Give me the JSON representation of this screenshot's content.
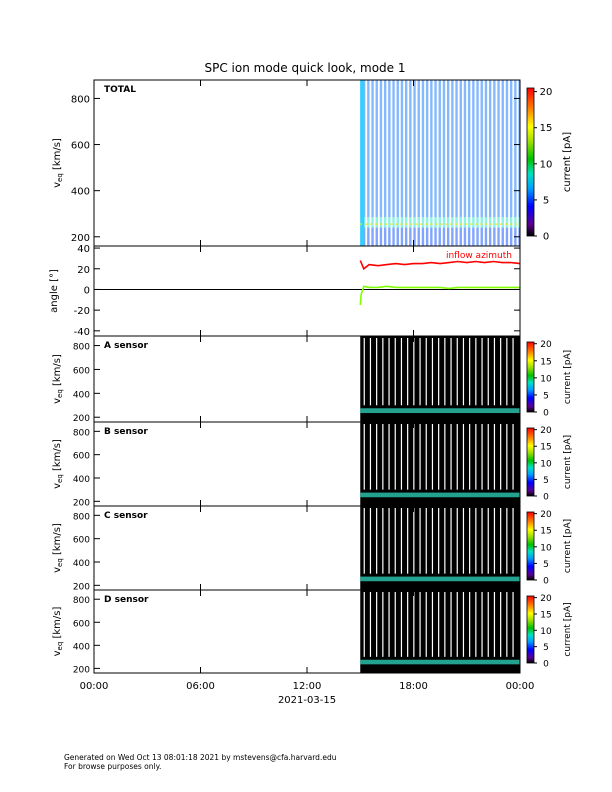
{
  "title": "SPC ion mode quick look, mode 1",
  "footer": {
    "line1": "Generated on Wed Oct 13 08:01:18 2021 by mstevens@cfa.harvard.edu",
    "line2": "For browse purposes only."
  },
  "chart_data": [
    {
      "type": "heatmap",
      "panel_label": "TOTAL",
      "ylabel": "v_eq [km/s]",
      "ylim": [
        160,
        880
      ],
      "yticks": [
        200,
        400,
        600,
        800
      ],
      "colorbar": {
        "label": "current [pA]",
        "range": [
          0,
          20.5
        ],
        "ticks": [
          0,
          5,
          10,
          15,
          20
        ],
        "colormap": "rainbow"
      },
      "data_start_hour": 15.0,
      "bands": [
        {
          "v_range": [
            160,
            240
          ],
          "color": "#1a5aff"
        },
        {
          "v_range": [
            240,
            285
          ],
          "color": "#30e8c8"
        },
        {
          "v_range": [
            285,
            880
          ],
          "color": "#2080ff"
        }
      ]
    },
    {
      "type": "line",
      "ylabel": "angle [°]",
      "ylim": [
        -45,
        42
      ],
      "yticks": [
        -40,
        -20,
        0,
        20,
        40
      ],
      "annotation": "inflow azimuth",
      "series": [
        {
          "name": "inflow azimuth",
          "color": "#ff0000",
          "x": [
            15.0,
            15.2,
            15.5,
            16.0,
            16.5,
            17.0,
            17.5,
            18.0,
            18.5,
            19.0,
            19.5,
            20.0,
            20.5,
            21.0,
            21.5,
            22.0,
            22.5,
            23.0,
            23.5,
            24.0
          ],
          "y": [
            28,
            20,
            24,
            23,
            24,
            25,
            24,
            25,
            25,
            26,
            25,
            26,
            27,
            26,
            27,
            26,
            27,
            26,
            26,
            25
          ]
        },
        {
          "color": "#80ff00",
          "x": [
            15.0,
            15.05,
            15.2,
            15.5,
            16.0,
            16.5,
            17.0,
            17.5,
            18.0,
            18.5,
            19.0,
            19.5,
            20.0,
            20.5,
            21.0,
            21.5,
            22.0,
            22.5,
            23.0,
            23.5,
            24.0
          ],
          "y": [
            -15,
            -5,
            3,
            2,
            2,
            3,
            2,
            2,
            2,
            2,
            2,
            2,
            1,
            2,
            2,
            2,
            2,
            2,
            2,
            2,
            2
          ]
        }
      ]
    },
    {
      "type": "heatmap",
      "panel_label": "A sensor",
      "ylabel": "v_eq [km/s]",
      "ylim": [
        160,
        880
      ],
      "yticks": [
        200,
        400,
        600,
        800
      ],
      "colorbar": {
        "label": "current [pA]",
        "range": [
          0,
          20.5
        ],
        "ticks": [
          0,
          5,
          10,
          15,
          20
        ],
        "colormap": "rainbow"
      },
      "data_start_hour": 15.0,
      "band_v": 255
    },
    {
      "type": "heatmap",
      "panel_label": "B sensor",
      "ylabel": "v_eq [km/s]",
      "ylim": [
        160,
        880
      ],
      "yticks": [
        200,
        400,
        600,
        800
      ],
      "colorbar": {
        "label": "current [pA]",
        "range": [
          0,
          20.5
        ],
        "ticks": [
          0,
          5,
          10,
          15,
          20
        ],
        "colormap": "rainbow"
      },
      "data_start_hour": 15.0,
      "band_v": 255
    },
    {
      "type": "heatmap",
      "panel_label": "C sensor",
      "ylabel": "v_eq [km/s]",
      "ylim": [
        160,
        880
      ],
      "yticks": [
        200,
        400,
        600,
        800
      ],
      "colorbar": {
        "label": "current [pA]",
        "range": [
          0,
          20.5
        ],
        "ticks": [
          0,
          5,
          10,
          15,
          20
        ],
        "colormap": "rainbow"
      },
      "data_start_hour": 15.0,
      "band_v": 255
    },
    {
      "type": "heatmap",
      "panel_label": "D sensor",
      "ylabel": "v_eq [km/s]",
      "ylim": [
        160,
        880
      ],
      "yticks": [
        200,
        400,
        600,
        800
      ],
      "colorbar": {
        "label": "current [pA]",
        "range": [
          0,
          20.5
        ],
        "ticks": [
          0,
          5,
          10,
          15,
          20
        ],
        "colormap": "rainbow"
      },
      "data_start_hour": 15.0,
      "band_v": 255
    }
  ],
  "x_axis": {
    "range_hours": [
      0,
      24
    ],
    "tick_hours": [
      0,
      6,
      12,
      18,
      24
    ],
    "tick_labels": [
      "00:00",
      "06:00",
      "12:00",
      "18:00",
      "00:00"
    ],
    "date_label": "2021-03-15"
  }
}
